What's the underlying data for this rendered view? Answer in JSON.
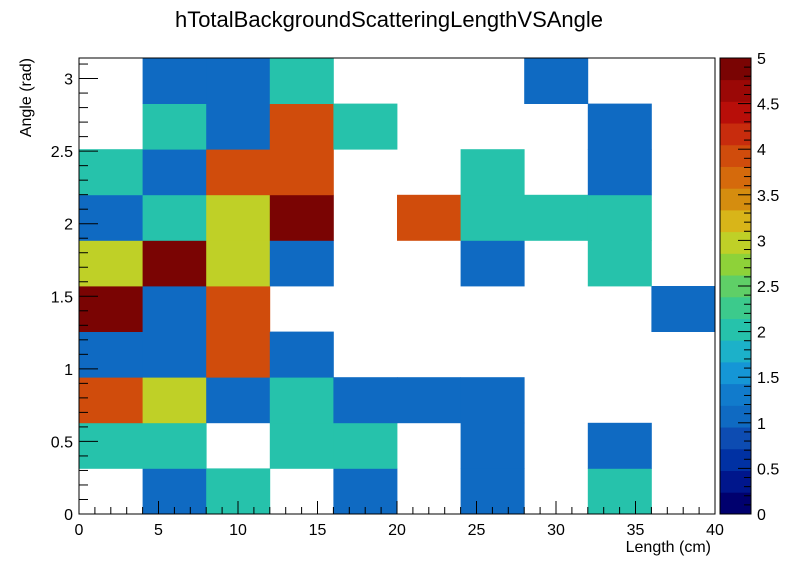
{
  "chart_data": {
    "type": "heatmap",
    "title": "hTotalBackgroundScatteringLengthVSAngle",
    "xlabel": "Length (cm)",
    "ylabel": "Angle (rad)",
    "x_range": [
      0,
      40
    ],
    "y_range": [
      0,
      3.1416
    ],
    "x_bins": 10,
    "y_bins": 10,
    "x_ticks": [
      "0",
      "5",
      "10",
      "15",
      "20",
      "25",
      "30",
      "35",
      "40"
    ],
    "y_ticks": [
      "0",
      "0.5",
      "1",
      "1.5",
      "2",
      "2.5",
      "3"
    ],
    "z_range": [
      0,
      5
    ],
    "z_ticks": [
      "0",
      "0.5",
      "1",
      "1.5",
      "2",
      "2.5",
      "3",
      "3.5",
      "4",
      "4.5",
      "5"
    ],
    "palette": [
      "#00006e",
      "#00168c",
      "#0031a3",
      "#0d4cb2",
      "#0f6ac2",
      "#117bcc",
      "#1596d6",
      "#1cb1c9",
      "#26c2ab",
      "#3cca8c",
      "#5fcf67",
      "#8ed239",
      "#bfd027",
      "#d8b519",
      "#d58d0f",
      "#d56a0c",
      "#d04c0c",
      "#c82c0d",
      "#b80e09",
      "#9b0806",
      "#7a0403"
    ],
    "grid": false,
    "values": [
      [
        null,
        1,
        2,
        null,
        1,
        null,
        1,
        null,
        2,
        null
      ],
      [
        2,
        2,
        null,
        2,
        2,
        null,
        1,
        null,
        1,
        null
      ],
      [
        4,
        3,
        1,
        2,
        1,
        1,
        1,
        null,
        null,
        null
      ],
      [
        1,
        1,
        4,
        1,
        null,
        null,
        null,
        null,
        null,
        null
      ],
      [
        5,
        1,
        4,
        null,
        null,
        null,
        null,
        null,
        null,
        1
      ],
      [
        3,
        5,
        3,
        1,
        null,
        null,
        1,
        null,
        2,
        null
      ],
      [
        1,
        2,
        3,
        5,
        null,
        4,
        2,
        2,
        2,
        null
      ],
      [
        2,
        1,
        4,
        4,
        null,
        null,
        2,
        null,
        1,
        null
      ],
      [
        null,
        2,
        1,
        4,
        2,
        null,
        null,
        null,
        1,
        null
      ],
      [
        null,
        1,
        1,
        2,
        null,
        null,
        null,
        1,
        null,
        null
      ]
    ]
  }
}
